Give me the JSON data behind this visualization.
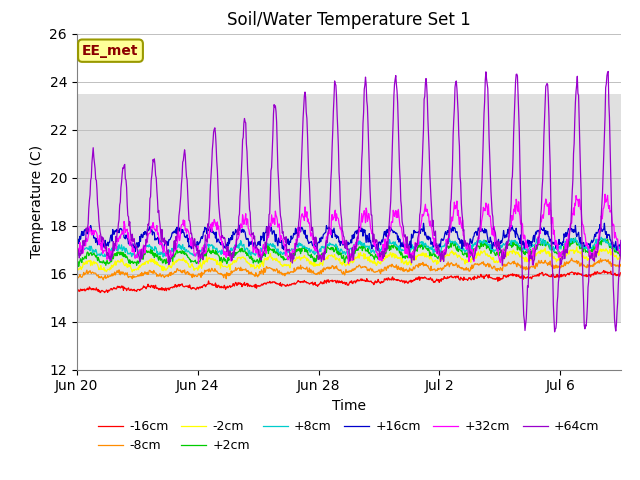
{
  "title": "Soil/Water Temperature Set 1",
  "xlabel": "Time",
  "ylabel": "Temperature (C)",
  "ylim": [
    12,
    26
  ],
  "n_days": 18,
  "annotation_text": "EE_met",
  "annotation_color": "#8B0000",
  "annotation_bg": "#FFFF99",
  "annotation_border": "#999900",
  "background_color": "#ffffff",
  "plot_bg_color": "#ffffff",
  "shaded_ymin": 14.0,
  "shaded_ymax": 23.5,
  "shaded_color": "#e0e0e0",
  "xtick_labels": [
    "Jun 20",
    "Jun 24",
    "Jun 28",
    "Jul 2",
    "Jul 6"
  ],
  "xtick_positions": [
    0,
    4,
    8,
    12,
    16
  ],
  "ytick_positions": [
    12,
    14,
    16,
    18,
    20,
    22,
    24,
    26
  ],
  "series_labels": [
    "-16cm",
    "-8cm",
    "-2cm",
    "+2cm",
    "+8cm",
    "+16cm",
    "+32cm",
    "+64cm"
  ],
  "series_colors": [
    "#FF0000",
    "#FF8C00",
    "#FFFF00",
    "#00CC00",
    "#00CCCC",
    "#0000CC",
    "#FF00FF",
    "#9900CC"
  ],
  "font_size": 10,
  "title_font_size": 12
}
